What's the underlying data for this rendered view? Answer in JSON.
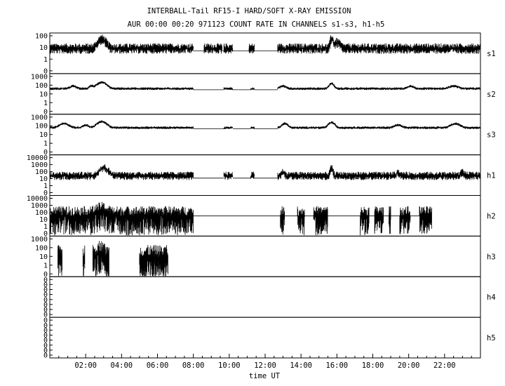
{
  "chart_data": {
    "type": "line",
    "title": "INTERBALL-Tail RF15-I HARD/SOFT X-RAY EMISSION",
    "subtitle": "AUR 00:00 00:20 971123  COUNT RATE IN CHANNELS s1-s3, h1-h5",
    "xlabel": "time UT",
    "x_range_hours": [
      0,
      24
    ],
    "x_ticks": [
      "02:00",
      "04:00",
      "06:00",
      "08:00",
      "10:00",
      "12:00",
      "14:00",
      "16:00",
      "18:00",
      "20:00",
      "22:00"
    ],
    "y_scale": "log",
    "grid": false,
    "panels": [
      {
        "name": "s1",
        "y_ticks": [
          "100",
          "10",
          "1",
          "0"
        ],
        "baseline": 8,
        "noise": 0.45,
        "segments": [
          [
            0,
            8
          ],
          [
            8.6,
            9.6
          ],
          [
            9.7,
            10.2
          ],
          [
            11.1,
            11.4
          ],
          [
            12.7,
            24
          ]
        ],
        "gap_level": 5,
        "peaks": [
          [
            2.9,
            6,
            0.25
          ],
          [
            15.7,
            6,
            0.08
          ],
          [
            16.0,
            3,
            0.2
          ]
        ]
      },
      {
        "name": "s2",
        "y_ticks": [
          "1000",
          "100",
          "10",
          "1",
          "0"
        ],
        "baseline": 40,
        "noise": 0.15,
        "segments": [
          [
            0,
            8
          ],
          [
            9.7,
            10.2
          ],
          [
            11.2,
            11.4
          ],
          [
            12.7,
            24
          ]
        ],
        "gap_level": 30,
        "peaks": [
          [
            1.3,
            2,
            0.2
          ],
          [
            2.3,
            2,
            0.15
          ],
          [
            2.9,
            5,
            0.3
          ],
          [
            13.0,
            2,
            0.2
          ],
          [
            15.7,
            4,
            0.15
          ],
          [
            20.1,
            2,
            0.2
          ],
          [
            22.5,
            2,
            0.3
          ]
        ]
      },
      {
        "name": "s3",
        "y_ticks": [
          "1000",
          "100",
          "10",
          "1",
          "0"
        ],
        "baseline": 60,
        "noise": 0.15,
        "segments": [
          [
            0,
            8
          ],
          [
            9.7,
            10.2
          ],
          [
            11.2,
            11.4
          ],
          [
            12.7,
            24
          ]
        ],
        "gap_level": 45,
        "peaks": [
          [
            0.8,
            3,
            0.3
          ],
          [
            2.0,
            2,
            0.2
          ],
          [
            2.9,
            5,
            0.3
          ],
          [
            13.1,
            3,
            0.2
          ],
          [
            15.7,
            4,
            0.2
          ],
          [
            19.4,
            2,
            0.25
          ],
          [
            22.6,
            3,
            0.3
          ]
        ]
      },
      {
        "name": "h1",
        "y_ticks": [
          "10000",
          "1000",
          "100",
          "10",
          "1",
          "0"
        ],
        "baseline": 25,
        "noise": 0.6,
        "segments": [
          [
            0,
            8
          ],
          [
            9.7,
            10.2
          ],
          [
            11.2,
            11.4
          ],
          [
            12.7,
            24
          ]
        ],
        "gap_level": 12,
        "peaks": [
          [
            2.9,
            8,
            0.2
          ],
          [
            3.2,
            4,
            0.2
          ],
          [
            15.7,
            10,
            0.08
          ],
          [
            13.0,
            3,
            0.1
          ],
          [
            19.4,
            3,
            0.08
          ],
          [
            23.0,
            3,
            0.1
          ]
        ]
      },
      {
        "name": "h2",
        "y_ticks": [
          "10000",
          "1000",
          "100",
          "10",
          "1",
          "0"
        ],
        "baseline": 30,
        "noise": 1.4,
        "segments": [
          [
            0,
            8
          ],
          [
            12.85,
            13.1
          ],
          [
            13.8,
            14.2
          ],
          [
            14.7,
            15.5
          ],
          [
            17.3,
            17.8
          ],
          [
            18.1,
            18.6
          ],
          [
            18.9,
            19.0
          ],
          [
            19.5,
            20.1
          ],
          [
            20.6,
            21.3
          ]
        ],
        "gap_level": 30,
        "peaks": [
          [
            2.9,
            4,
            0.3
          ]
        ]
      },
      {
        "name": "h3",
        "y_ticks": [
          "1000",
          "100",
          "10",
          "1",
          "0"
        ],
        "baseline": 8,
        "noise": 1.4,
        "segments": [
          [
            0.45,
            0.7
          ],
          [
            1.85,
            1.95
          ],
          [
            2.4,
            3.3
          ],
          [
            5.0,
            6.6
          ]
        ],
        "gap_level": 0,
        "peaks": [
          [
            2.8,
            4,
            0.2
          ]
        ]
      },
      {
        "name": "h4",
        "y_ticks": [
          "0",
          "0",
          "0",
          "0",
          "0",
          "0",
          "0",
          "0"
        ],
        "baseline": 0,
        "noise": 0,
        "segments": [],
        "gap_level": 0,
        "peaks": []
      },
      {
        "name": "h5",
        "y_ticks": [
          "0",
          "0",
          "0",
          "0",
          "0",
          "0",
          "0",
          "0"
        ],
        "baseline": 0,
        "noise": 0,
        "segments": [],
        "gap_level": 0,
        "peaks": []
      }
    ]
  }
}
